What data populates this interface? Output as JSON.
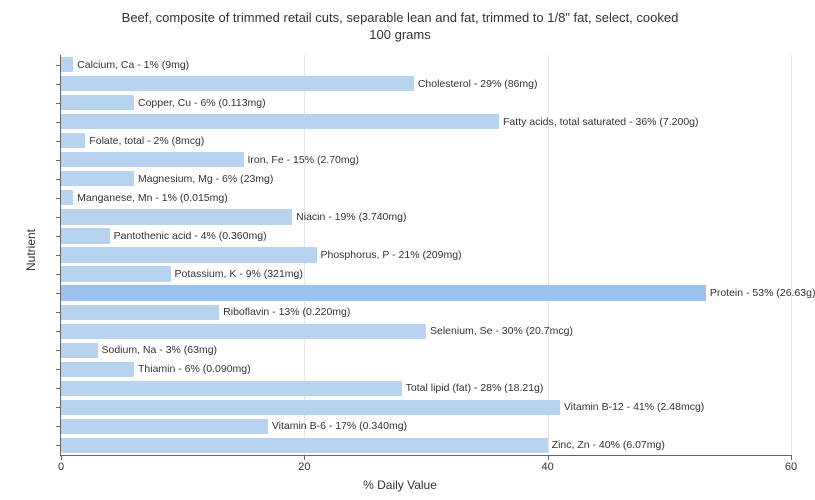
{
  "chart": {
    "type": "bar-horizontal",
    "title_line1": "Beef, composite of trimmed retail cuts, separable lean and fat, trimmed to 1/8\" fat, select, cooked",
    "title_line2": "100 grams",
    "title_fontsize": 13,
    "xlabel": "% Daily Value",
    "ylabel": "Nutrient",
    "label_fontsize": 12,
    "xlim": [
      0,
      60
    ],
    "xtick_step": 20,
    "xticks": [
      0,
      20,
      40,
      60
    ],
    "background_color": "#ffffff",
    "grid_color": "#e6e6e6",
    "axis_color": "#666666",
    "bar_height_ratio": 0.8,
    "bars": [
      {
        "label": "Calcium, Ca - 1% (9mg)",
        "value": 1,
        "color": "#b8d3f0"
      },
      {
        "label": "Cholesterol - 29% (86mg)",
        "value": 29,
        "color": "#b8d3f0"
      },
      {
        "label": "Copper, Cu - 6% (0.113mg)",
        "value": 6,
        "color": "#b8d3f0"
      },
      {
        "label": "Fatty acids, total saturated - 36% (7.200g)",
        "value": 36,
        "color": "#b8d3f0"
      },
      {
        "label": "Folate, total - 2% (8mcg)",
        "value": 2,
        "color": "#b8d3f0"
      },
      {
        "label": "Iron, Fe - 15% (2.70mg)",
        "value": 15,
        "color": "#b8d3f0"
      },
      {
        "label": "Magnesium, Mg - 6% (23mg)",
        "value": 6,
        "color": "#b8d3f0"
      },
      {
        "label": "Manganese, Mn - 1% (0.015mg)",
        "value": 1,
        "color": "#b8d3f0"
      },
      {
        "label": "Niacin - 19% (3.740mg)",
        "value": 19,
        "color": "#b8d3f0"
      },
      {
        "label": "Pantothenic acid - 4% (0.360mg)",
        "value": 4,
        "color": "#b8d3f0"
      },
      {
        "label": "Phosphorus, P - 21% (209mg)",
        "value": 21,
        "color": "#b8d3f0"
      },
      {
        "label": "Potassium, K - 9% (321mg)",
        "value": 9,
        "color": "#b8d3f0"
      },
      {
        "label": "Protein - 53% (26.63g)",
        "value": 53,
        "color": "#9bc2ec"
      },
      {
        "label": "Riboflavin - 13% (0.220mg)",
        "value": 13,
        "color": "#b8d3f0"
      },
      {
        "label": "Selenium, Se - 30% (20.7mcg)",
        "value": 30,
        "color": "#b8d3f0"
      },
      {
        "label": "Sodium, Na - 3% (63mg)",
        "value": 3,
        "color": "#b8d3f0"
      },
      {
        "label": "Thiamin - 6% (0.090mg)",
        "value": 6,
        "color": "#b8d3f0"
      },
      {
        "label": "Total lipid (fat) - 28% (18.21g)",
        "value": 28,
        "color": "#b8d3f0"
      },
      {
        "label": "Vitamin B-12 - 41% (2.48mcg)",
        "value": 41,
        "color": "#b8d3f0"
      },
      {
        "label": "Vitamin B-6 - 17% (0.340mg)",
        "value": 17,
        "color": "#b8d3f0"
      },
      {
        "label": "Zinc, Zn - 40% (6.07mg)",
        "value": 40,
        "color": "#b8d3f0"
      }
    ]
  }
}
